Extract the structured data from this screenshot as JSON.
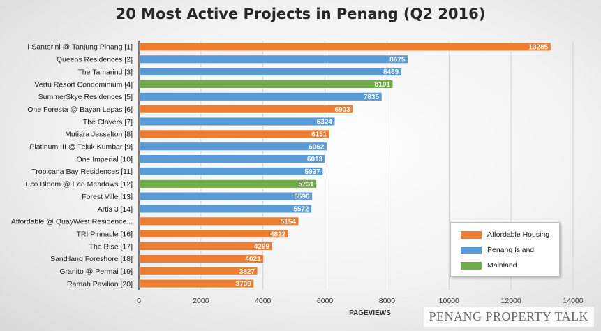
{
  "chart_data": {
    "type": "bar",
    "orientation": "horizontal",
    "title": "20 Most Active Projects in Penang (Q2 2016)",
    "xlabel": "PAGEVIEWS",
    "ylabel": "",
    "xlim": [
      0,
      14000
    ],
    "xticks": [
      "0",
      "2000",
      "4000",
      "6000",
      "8000",
      "10000",
      "12000",
      "14000"
    ],
    "grid": true,
    "legend_position": "bottom-right",
    "colors": {
      "Affordable Housing": "#ED7D31",
      "Penang Island": "#5B9BD5",
      "Mainland": "#70AD47"
    },
    "categories": [
      "i-Santorini @ Tanjung Pinang [1]",
      "Queens Residences [2]",
      "The Tamarind [3]",
      "Vertu Resort Condominium [4]",
      "SummerSkye Residences [5]",
      "One Foresta @ Bayan Lepas [6]",
      "The Clovers [7]",
      "Mutiara Jesselton [8]",
      "Platinum III @ Teluk Kumbar [9]",
      "One Imperial [10]",
      "Tropicana Bay Residences [11]",
      "Eco Bloom @ Eco Meadows [12]",
      "Forest Ville [13]",
      "Artis 3 [14]",
      "Affordable @ QuayWest Residence...",
      "TRI Pinnacle [16]",
      "The Rise [17]",
      "Sandiland Foreshore [18]",
      "Granito @ Permai [19]",
      "Ramah Pavilion [20]"
    ],
    "values": [
      13285,
      8675,
      8469,
      8191,
      7835,
      6903,
      6324,
      6151,
      6062,
      6013,
      5937,
      5731,
      5596,
      5572,
      5154,
      4822,
      4299,
      4021,
      3827,
      3709
    ],
    "series_groups": [
      "Affordable Housing",
      "Penang Island",
      "Penang Island",
      "Mainland",
      "Penang Island",
      "Affordable Housing",
      "Penang Island",
      "Affordable Housing",
      "Penang Island",
      "Penang Island",
      "Penang Island",
      "Mainland",
      "Penang Island",
      "Penang Island",
      "Affordable Housing",
      "Affordable Housing",
      "Affordable Housing",
      "Affordable Housing",
      "Affordable Housing",
      "Affordable Housing"
    ],
    "legend": [
      "Affordable Housing",
      "Penang Island",
      "Mainland"
    ]
  },
  "watermark": "PENANG PROPERTY TALK"
}
